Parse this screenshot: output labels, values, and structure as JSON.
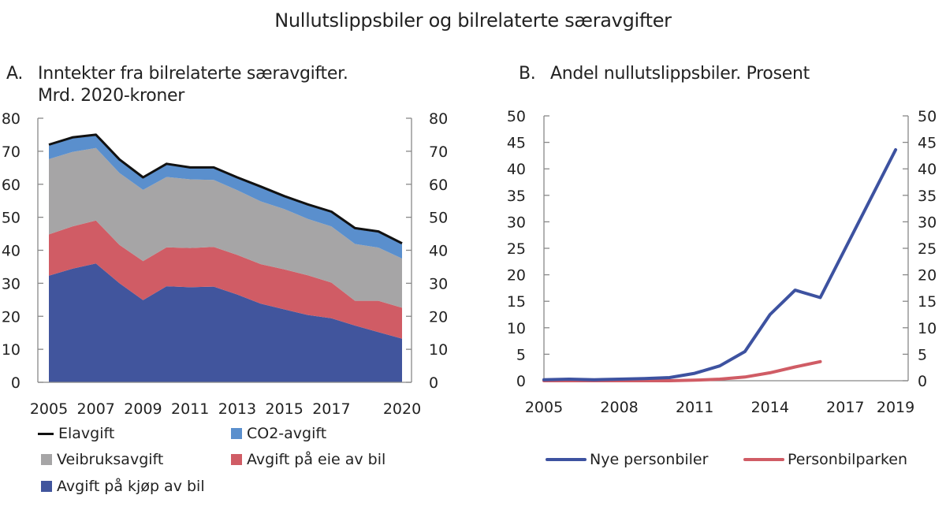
{
  "title": "Nullutslippsbiler og bilrelaterte særavgifter",
  "panels": {
    "a": {
      "letter": "A.",
      "title_line1": "Inntekter fra bilrelaterte særavgifter.",
      "title_line2": "Mrd. 2020-kroner"
    },
    "b": {
      "letter": "B.",
      "title_line1": "Andel nullutslippsbiler. Prosent"
    }
  },
  "colors": {
    "elavgift": "#111111",
    "co2": "#5a8fcd",
    "veibruk": "#a6a5a6",
    "eie": "#d05c65",
    "kjop": "#41559d",
    "nye": "#3d52a0",
    "park": "#d05c65",
    "axis": "#888888"
  },
  "chart_data": [
    {
      "type": "area",
      "stacked": true,
      "title": "Inntekter fra bilrelaterte særavgifter. Mrd. 2020-kroner",
      "xlabel": "",
      "ylabel": "",
      "x": [
        2005,
        2006,
        2007,
        2008,
        2009,
        2010,
        2011,
        2012,
        2013,
        2014,
        2015,
        2016,
        2017,
        2018,
        2019,
        2020
      ],
      "x_tick_labels": [
        "2005",
        "2007",
        "2009",
        "2011",
        "2013",
        "2015",
        "2017",
        "2020"
      ],
      "ylim": [
        0,
        80
      ],
      "y_ticks": [
        0,
        10,
        20,
        30,
        40,
        50,
        60,
        70,
        80
      ],
      "y_axis_both_sides": true,
      "grid": false,
      "series": [
        {
          "name": "Avgift på kjøp av bil",
          "values": [
            32.3,
            34.4,
            36.0,
            30.0,
            24.9,
            29.1,
            28.8,
            29.0,
            26.6,
            23.8,
            22.1,
            20.4,
            19.4,
            17.2,
            15.2,
            13.2
          ]
        },
        {
          "name": "Avgift på eie av bil",
          "values": [
            12.5,
            12.8,
            13.0,
            11.6,
            11.8,
            11.8,
            11.9,
            12.0,
            12.0,
            12.0,
            12.1,
            12.0,
            10.8,
            7.5,
            9.5,
            9.4
          ]
        },
        {
          "name": "Veibruksavgift",
          "values": [
            22.8,
            22.6,
            22.0,
            21.8,
            21.6,
            21.3,
            20.8,
            20.3,
            19.6,
            19.0,
            18.3,
            17.1,
            17.0,
            17.2,
            16.1,
            14.9
          ]
        },
        {
          "name": "CO2-avgift",
          "values": [
            4.1,
            4.1,
            3.7,
            3.8,
            3.5,
            3.8,
            3.4,
            3.5,
            3.6,
            4.2,
            3.7,
            4.1,
            4.2,
            4.5,
            4.6,
            4.4
          ]
        },
        {
          "name": "Elavgift",
          "values": [
            0.3,
            0.3,
            0.3,
            0.3,
            0.3,
            0.2,
            0.2,
            0.3,
            0.3,
            0.3,
            0.2,
            0.3,
            0.3,
            0.3,
            0.3,
            0.2
          ]
        }
      ],
      "legend": {
        "position": "bottom",
        "items": [
          {
            "name": "Elavgift",
            "marker": "line"
          },
          {
            "name": "CO2-avgift",
            "marker": "square"
          },
          {
            "name": "Veibruksavgift",
            "marker": "square"
          },
          {
            "name": "Avgift på eie av bil",
            "marker": "square"
          },
          {
            "name": "Avgift på kjøp av bil",
            "marker": "square"
          }
        ]
      }
    },
    {
      "type": "line",
      "title": "Andel nullutslippsbiler. Prosent",
      "xlabel": "",
      "ylabel": "",
      "x": [
        2005,
        2006,
        2007,
        2008,
        2009,
        2010,
        2011,
        2012,
        2013,
        2014,
        2015,
        2016,
        2017,
        2018,
        2019
      ],
      "x_tick_labels": [
        "2005",
        "2008",
        "2011",
        "2014",
        "2017",
        "2019"
      ],
      "xlim": [
        2005,
        2019.5
      ],
      "ylim": [
        0,
        50
      ],
      "y_ticks": [
        0,
        5,
        10,
        15,
        20,
        25,
        30,
        35,
        40,
        45,
        50
      ],
      "y_axis_both_sides": true,
      "grid": false,
      "series": [
        {
          "name": "Nye personbiler",
          "values": [
            0.2,
            0.3,
            0.2,
            0.3,
            0.4,
            0.6,
            1.4,
            2.8,
            5.5,
            12.5,
            17.1,
            15.7,
            null,
            null,
            43.6
          ]
        },
        {
          "name": "Personbilparken",
          "values": [
            0.0,
            0.0,
            0.0,
            0.0,
            0.0,
            0.0,
            0.1,
            0.3,
            0.7,
            1.5,
            2.6,
            3.6,
            null,
            null,
            null
          ]
        }
      ],
      "legend": {
        "position": "bottom",
        "items": [
          {
            "name": "Nye personbiler",
            "marker": "line"
          },
          {
            "name": "Personbilparken",
            "marker": "line"
          }
        ]
      }
    }
  ]
}
